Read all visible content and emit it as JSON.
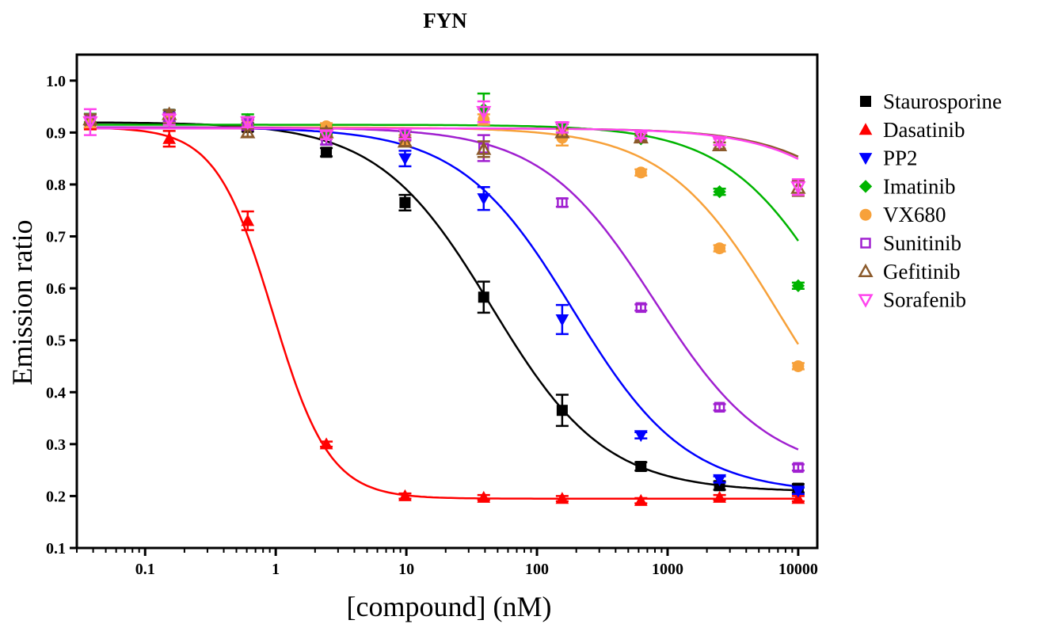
{
  "chart_data": {
    "type": "scatter",
    "title": "FYN",
    "xlabel": "[compound] (nM)",
    "ylabel": "Emission ratio",
    "xscale": "log",
    "xlim": [
      0.03,
      14000
    ],
    "ylim": [
      0.1,
      1.05
    ],
    "x_ticks": [
      0.1,
      1,
      10,
      100,
      1000,
      10000
    ],
    "x_tick_labels": [
      "0.1",
      "1",
      "10",
      "100",
      "1000",
      "10000"
    ],
    "y_ticks": [
      0.1,
      0.2,
      0.3,
      0.4,
      0.5,
      0.6,
      0.7,
      0.8,
      0.9,
      1.0
    ],
    "y_tick_labels": [
      "0.1",
      "0.2",
      "0.3",
      "0.4",
      "0.5",
      "0.6",
      "0.7",
      "0.8",
      "0.9",
      "1.0"
    ],
    "grid": false,
    "legend_position": "right",
    "x": [
      0.038,
      0.153,
      0.61,
      2.44,
      9.77,
      39.1,
      156,
      625,
      2500,
      10000
    ],
    "series": [
      {
        "name": "Staurosporine",
        "color": "#000000",
        "marker": "square-filled",
        "values": [
          0.92,
          0.935,
          0.91,
          0.862,
          0.765,
          0.583,
          0.365,
          0.257,
          0.22,
          0.215
        ],
        "errors": [
          0.01,
          0.008,
          0.008,
          0.008,
          0.015,
          0.03,
          0.03,
          0.008,
          0.008,
          0.008
        ],
        "fit": {
          "top": 0.92,
          "bottom": 0.208,
          "ic50": 45,
          "hill": 1.0
        }
      },
      {
        "name": "Dasatinib",
        "color": "#ff0000",
        "marker": "triangle-up-filled",
        "values": [
          0.918,
          0.888,
          0.73,
          0.3,
          0.2,
          0.197,
          0.195,
          0.191,
          0.197,
          0.195
        ],
        "errors": [
          0.012,
          0.015,
          0.018,
          0.005,
          0.005,
          0.005,
          0.005,
          0.005,
          0.005,
          0.005
        ],
        "fit": {
          "top": 0.91,
          "bottom": 0.195,
          "ic50": 0.95,
          "hill": 2.0
        }
      },
      {
        "name": "PP2",
        "color": "#0000ff",
        "marker": "triangle-down-filled",
        "values": [
          0.92,
          0.928,
          0.92,
          0.9,
          0.85,
          0.773,
          0.54,
          0.317,
          0.232,
          0.21
        ],
        "errors": [
          0.01,
          0.008,
          0.008,
          0.008,
          0.015,
          0.022,
          0.028,
          0.006,
          0.006,
          0.006
        ],
        "fit": {
          "top": 0.91,
          "bottom": 0.205,
          "ic50": 190,
          "hill": 1.0
        }
      },
      {
        "name": "Imatinib",
        "color": "#00b400",
        "marker": "diamond-filled",
        "values": [
          0.928,
          0.935,
          0.925,
          0.905,
          0.895,
          0.945,
          0.908,
          0.888,
          0.786,
          0.605
        ],
        "errors": [
          0.008,
          0.008,
          0.01,
          0.008,
          0.008,
          0.03,
          0.008,
          0.006,
          0.006,
          0.006
        ],
        "fit": {
          "top": 0.915,
          "bottom": 0.2,
          "ic50": 22000,
          "hill": 1.0
        }
      },
      {
        "name": "VX680",
        "color": "#f7a13a",
        "marker": "circle-filled",
        "values": [
          0.92,
          0.928,
          0.915,
          0.912,
          0.885,
          0.925,
          0.89,
          0.823,
          0.677,
          0.45
        ],
        "errors": [
          0.01,
          0.008,
          0.008,
          0.006,
          0.01,
          0.01,
          0.015,
          0.006,
          0.006,
          0.006
        ],
        "fit": {
          "top": 0.91,
          "bottom": 0.2,
          "ic50": 7000,
          "hill": 1.0
        }
      },
      {
        "name": "Sunitinib",
        "color": "#a020d0",
        "marker": "square-open",
        "values": [
          0.925,
          0.93,
          0.915,
          0.885,
          0.895,
          0.87,
          0.765,
          0.563,
          0.371,
          0.255
        ],
        "errors": [
          0.01,
          0.008,
          0.01,
          0.008,
          0.01,
          0.025,
          0.008,
          0.006,
          0.006,
          0.006
        ],
        "fit": {
          "top": 0.91,
          "bottom": 0.24,
          "ic50": 800,
          "hill": 1.0
        }
      },
      {
        "name": "Gefitinib",
        "color": "#8b5a2b",
        "marker": "triangle-up-open",
        "values": [
          0.925,
          0.935,
          0.9,
          0.9,
          0.882,
          0.868,
          0.9,
          0.89,
          0.875,
          0.793
        ],
        "errors": [
          0.01,
          0.008,
          0.008,
          0.008,
          0.008,
          0.015,
          0.008,
          0.006,
          0.006,
          0.015
        ],
        "fit": {
          "top": 0.908,
          "bottom": 0.2,
          "ic50": 120000,
          "hill": 1.0
        }
      },
      {
        "name": "Sorafenib",
        "color": "#ff44ee",
        "marker": "triangle-down-open",
        "values": [
          0.92,
          0.925,
          0.92,
          0.895,
          0.898,
          0.94,
          0.91,
          0.895,
          0.882,
          0.795
        ],
        "errors": [
          0.025,
          0.01,
          0.01,
          0.008,
          0.01,
          0.02,
          0.01,
          0.006,
          0.006,
          0.015
        ],
        "fit": {
          "top": 0.908,
          "bottom": 0.2,
          "ic50": 110000,
          "hill": 1.0
        }
      }
    ]
  }
}
